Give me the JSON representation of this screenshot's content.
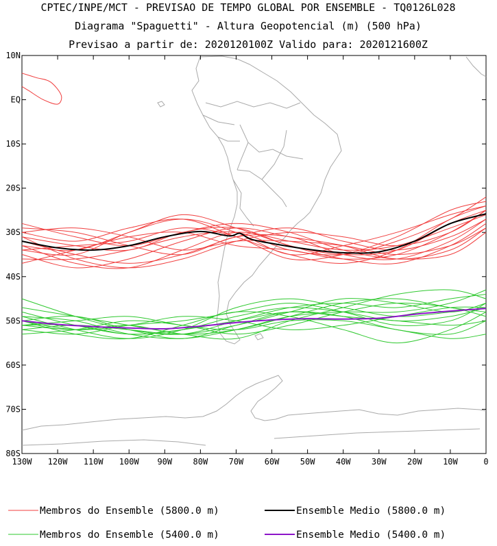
{
  "chart_data": {
    "type": "line",
    "title_lines": [
      "CPTEC/INPE/MCT - PREVISAO DE TEMPO GLOBAL POR ENSEMBLE - TQ0126L028",
      "Diagrama \"Spaguetti\" - Altura Geopotencial (m) (500 hPa)",
      "Previsao a partir de: 2020120100Z  Valido para: 2020121600Z"
    ],
    "x_range_lon": [
      -130,
      0
    ],
    "y_range_lat": [
      10,
      -80
    ],
    "x_ticks": [
      {
        "lon": -130,
        "label": "130W"
      },
      {
        "lon": -120,
        "label": "120W"
      },
      {
        "lon": -110,
        "label": "110W"
      },
      {
        "lon": -100,
        "label": "100W"
      },
      {
        "lon": -90,
        "label": "90W"
      },
      {
        "lon": -80,
        "label": "80W"
      },
      {
        "lon": -70,
        "label": "70W"
      },
      {
        "lon": -60,
        "label": "60W"
      },
      {
        "lon": -50,
        "label": "50W"
      },
      {
        "lon": -40,
        "label": "40W"
      },
      {
        "lon": -30,
        "label": "30W"
      },
      {
        "lon": -20,
        "label": "20W"
      },
      {
        "lon": -10,
        "label": "10W"
      },
      {
        "lon": 0,
        "label": "0"
      }
    ],
    "y_ticks": [
      {
        "lat": 10,
        "label": "10N"
      },
      {
        "lat": 0,
        "label": "EQ"
      },
      {
        "lat": -10,
        "label": "10S"
      },
      {
        "lat": -20,
        "label": "20S"
      },
      {
        "lat": -30,
        "label": "30S"
      },
      {
        "lat": -40,
        "label": "40S"
      },
      {
        "lat": -50,
        "label": "50S"
      },
      {
        "lat": -60,
        "label": "60S"
      },
      {
        "lat": -70,
        "label": "70S"
      },
      {
        "lat": -80,
        "label": "80S"
      }
    ],
    "colors": {
      "member_5800": "#f03c3c",
      "mean_5800": "#000000",
      "member_5400": "#2ec82e",
      "mean_5400": "#8c14c8",
      "map": "#a9a9a9"
    },
    "series": [
      {
        "name": "mean_5800",
        "x": [
          -130,
          -120,
          -110,
          -100,
          -90,
          -80,
          -72,
          -69,
          -66,
          -60,
          -50,
          -40,
          -30,
          -20,
          -10,
          0
        ],
        "y": [
          -32,
          -33.5,
          -34,
          -33,
          -31,
          -29.8,
          -30.8,
          -30.2,
          -31.5,
          -32.5,
          -33.8,
          -34.6,
          -34.4,
          -32,
          -28,
          -25.8
        ]
      },
      {
        "name": "mean_5400",
        "x": [
          -130,
          -120,
          -110,
          -100,
          -90,
          -80,
          -70,
          -60,
          -50,
          -40,
          -30,
          -20,
          -10,
          0
        ],
        "y": [
          -50,
          -50.8,
          -51.3,
          -51.6,
          -51.8,
          -51.2,
          -50.4,
          -49.8,
          -49.5,
          -49.6,
          -49.4,
          -48.5,
          -47.8,
          -47.2
        ]
      },
      {
        "name": "member_5800",
        "x": [
          -130,
          -115,
          -100,
          -85,
          -70,
          -55,
          -40,
          -25,
          -10,
          0
        ],
        "members": [
          [
            -31,
            -33,
            -34,
            -30,
            -29,
            -33,
            -35,
            -34,
            -28,
            -25
          ],
          [
            -34,
            -35,
            -30,
            -27,
            -30,
            -35,
            -33,
            -30,
            -26,
            -24
          ],
          [
            -29,
            -30,
            -33,
            -35,
            -31,
            -31,
            -35,
            -36,
            -32,
            -27
          ],
          [
            -37,
            -34,
            -31,
            -30,
            -33,
            -34,
            -36,
            -35,
            -30,
            -25
          ],
          [
            -33,
            -37,
            -38,
            -34,
            -30,
            -32,
            -34,
            -33,
            -29,
            -26
          ],
          [
            -30,
            -32,
            -29,
            -27,
            -31,
            -35,
            -37,
            -34,
            -27,
            -24
          ],
          [
            -35,
            -38,
            -36,
            -32,
            -29,
            -31,
            -33,
            -36,
            -34,
            -29
          ],
          [
            -32,
            -35,
            -37,
            -35,
            -31,
            -29,
            -32,
            -34,
            -31,
            -27
          ],
          [
            -28,
            -31,
            -33,
            -30,
            -28,
            -30,
            -34,
            -36,
            -35,
            -30
          ],
          [
            -36,
            -36,
            -34,
            -31,
            -30,
            -34,
            -35,
            -32,
            -27,
            -22
          ],
          [
            -33,
            -34,
            -30,
            -26,
            -29,
            -33,
            -36,
            -37,
            -33,
            -28
          ],
          [
            -31,
            -36,
            -38,
            -36,
            -32,
            -30,
            -31,
            -33,
            -30,
            -25
          ],
          [
            -34,
            -33,
            -32,
            -29,
            -31,
            -36,
            -35,
            -31,
            -25,
            -23
          ],
          [
            -30,
            -29,
            -31,
            -34,
            -32,
            -32,
            -33,
            -35,
            -33,
            -29
          ]
        ]
      },
      {
        "name": "member_5400",
        "x": [
          -130,
          -115,
          -100,
          -85,
          -70,
          -55,
          -40,
          -25,
          -10,
          0
        ],
        "members": [
          [
            -48,
            -51,
            -53,
            -52,
            -49,
            -47,
            -48,
            -50,
            -49,
            -47
          ],
          [
            -51,
            -52,
            -51,
            -53,
            -52,
            -49,
            -46,
            -45,
            -47,
            -48
          ],
          [
            -50,
            -49,
            -52,
            -54,
            -51,
            -48,
            -49,
            -52,
            -53,
            -50
          ],
          [
            -52,
            -53,
            -51,
            -50,
            -48,
            -46,
            -48,
            -51,
            -50,
            -46
          ],
          [
            -45,
            -49,
            -52,
            -53,
            -50,
            -47,
            -46,
            -47,
            -45,
            -44
          ],
          [
            -49,
            -52,
            -54,
            -52,
            -47,
            -45,
            -47,
            -49,
            -48,
            -47
          ],
          [
            -53,
            -52,
            -50,
            -51,
            -53,
            -51,
            -48,
            -46,
            -47,
            -49
          ],
          [
            -47,
            -49,
            -51,
            -53,
            -54,
            -50,
            -47,
            -44,
            -43,
            -45
          ],
          [
            -51,
            -50,
            -49,
            -51,
            -52,
            -50,
            -50,
            -52,
            -54,
            -53
          ],
          [
            -50,
            -53,
            -54,
            -51,
            -48,
            -49,
            -52,
            -55,
            -52,
            -48
          ],
          [
            -52,
            -51,
            -52,
            -53,
            -51,
            -48,
            -45,
            -46,
            -48,
            -46
          ],
          [
            -49,
            -50,
            -53,
            -54,
            -52,
            -49,
            -48,
            -48,
            -46,
            -43
          ],
          [
            -50,
            -52,
            -51,
            -49,
            -50,
            -52,
            -51,
            -49,
            -47,
            -47
          ],
          [
            -51,
            -51,
            -53,
            -52,
            -50,
            -48,
            -49,
            -50,
            -51,
            -50
          ]
        ]
      }
    ],
    "closed_contours": [
      {
        "name": "member_5800",
        "x": [
          -130,
          -126,
          -122,
          -119,
          -120,
          -124,
          -128,
          -130
        ],
        "y": [
          6,
          5,
          4,
          1,
          -1,
          0,
          2,
          3
        ]
      }
    ],
    "legend": [
      {
        "label": "Membros do Ensemble (5800.0 m)",
        "color": "#f03c3c"
      },
      {
        "label": "Ensemble Medio (5800.0 m)",
        "color": "#000000"
      },
      {
        "label": "Membros do Ensemble (5400.0 m)",
        "color": "#2ec82e"
      },
      {
        "label": "Ensemble Medio (5400.0 m)",
        "color": "#8c14c8"
      }
    ]
  }
}
